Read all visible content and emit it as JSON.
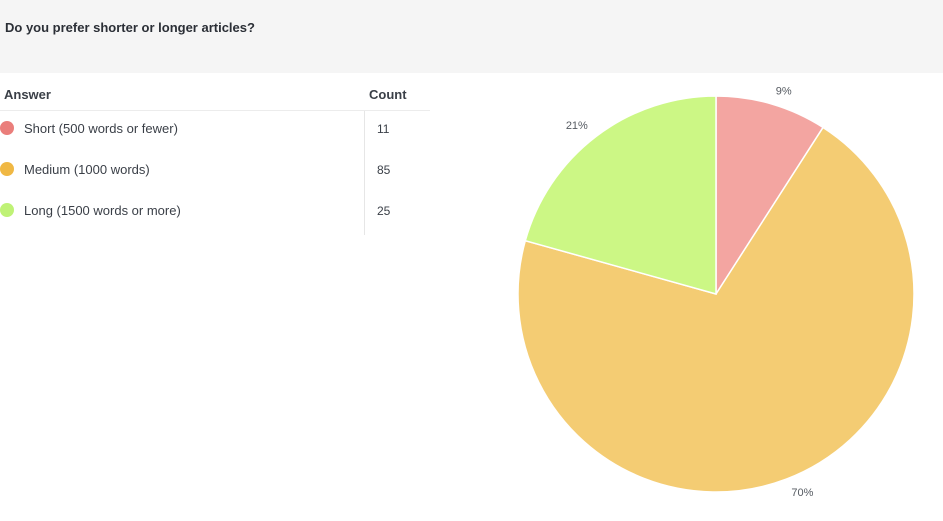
{
  "question": {
    "title": "Do you prefer shorter or longer articles?"
  },
  "table": {
    "answer_header": "Answer",
    "count_header": "Count",
    "rows": [
      {
        "label": "Short (500 words or fewer)",
        "count": "11",
        "color": "#ea7e7b"
      },
      {
        "label": "Medium (1000 words)",
        "count": "85",
        "color": "#f0b844"
      },
      {
        "label": "Long (1500 words or more)",
        "count": "25",
        "color": "#bff276"
      }
    ]
  },
  "chart_data": {
    "type": "pie",
    "categories": [
      "Short (500 words or fewer)",
      "Medium (1000 words)",
      "Long (1500 words or more)"
    ],
    "values": [
      11,
      85,
      25
    ],
    "percent_labels": [
      "9%",
      "70%",
      "21%"
    ],
    "colors": [
      "#f3a5a1",
      "#f4cc73",
      "#ccf785"
    ]
  }
}
